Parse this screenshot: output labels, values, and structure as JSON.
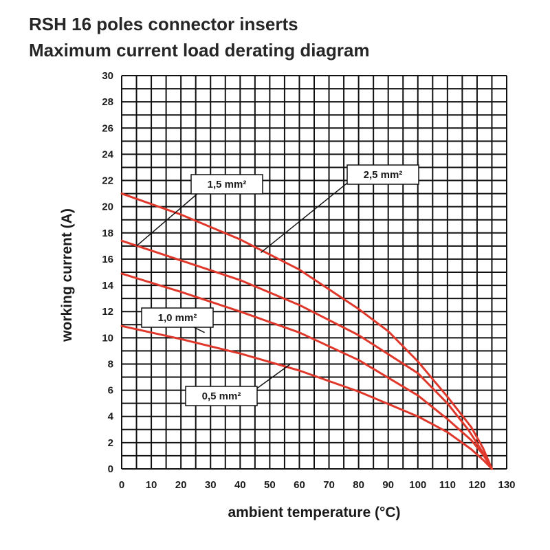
{
  "chart_data": {
    "type": "line",
    "title": "RSH 16 poles connector inserts",
    "subtitle": "Maximum current load derating diagram",
    "xlabel": "ambient temperature (°C)",
    "ylabel": "working current (A)",
    "xlim": [
      0,
      130
    ],
    "ylim": [
      0,
      30
    ],
    "xticks": [
      0,
      10,
      20,
      30,
      40,
      50,
      60,
      70,
      80,
      90,
      100,
      110,
      120,
      130
    ],
    "yticks": [
      0,
      2,
      4,
      6,
      8,
      10,
      12,
      14,
      16,
      18,
      20,
      22,
      24,
      26,
      28,
      30
    ],
    "grid": true,
    "line_color": "#e0372b",
    "series": [
      {
        "name": "2,5 mm²",
        "x": [
          0,
          20,
          40,
          60,
          80,
          90,
          100,
          110,
          118,
          122,
          125
        ],
        "y": [
          21.0,
          19.4,
          17.5,
          15.2,
          12.2,
          10.5,
          8.2,
          5.5,
          3.2,
          1.6,
          0
        ]
      },
      {
        "name": "1,5 mm²",
        "x": [
          0,
          20,
          40,
          60,
          80,
          100,
          110,
          117,
          121,
          125
        ],
        "y": [
          17.4,
          15.9,
          14.4,
          12.5,
          10.2,
          7.3,
          5.0,
          3.0,
          1.6,
          0
        ]
      },
      {
        "name": "1,0 mm²",
        "x": [
          0,
          20,
          40,
          60,
          80,
          100,
          110,
          118,
          122,
          125
        ],
        "y": [
          14.9,
          13.5,
          12.0,
          10.4,
          8.3,
          5.6,
          3.8,
          2.2,
          1.1,
          0
        ]
      },
      {
        "name": "0,5 mm²",
        "x": [
          0,
          20,
          40,
          60,
          80,
          100,
          110,
          118,
          122,
          125
        ],
        "y": [
          10.9,
          9.9,
          8.8,
          7.5,
          5.9,
          4.0,
          2.8,
          1.5,
          0.7,
          0
        ]
      }
    ],
    "callouts": [
      {
        "label": "1,5 mm²",
        "points_to": "1,5 mm²",
        "anchor": [
          5,
          17
        ]
      },
      {
        "label": "2,5 mm²",
        "points_to": "2,5 mm²",
        "anchor": [
          47,
          16.5
        ]
      },
      {
        "label": "1,0 mm²",
        "points_to": "1,0 mm²",
        "anchor": [
          28,
          10.4
        ]
      },
      {
        "label": "0,5 mm²",
        "points_to": "0,5 mm²",
        "anchor": [
          57,
          8.0
        ]
      }
    ]
  }
}
